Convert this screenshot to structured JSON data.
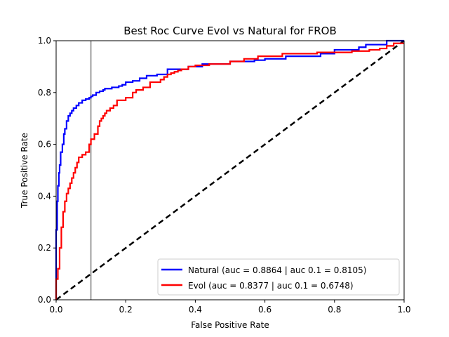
{
  "chart_data": {
    "type": "line",
    "title": "Best Roc Curve Evol vs Natural for FROB",
    "xlabel": "False Positive Rate",
    "ylabel": "True Positive Rate",
    "xlim": [
      0,
      1
    ],
    "ylim": [
      0,
      1
    ],
    "xticks": [
      "0.0",
      "0.2",
      "0.4",
      "0.6",
      "0.8",
      "1.0"
    ],
    "yticks": [
      "0.0",
      "0.2",
      "0.4",
      "0.6",
      "0.8",
      "1.0"
    ],
    "grid": false,
    "legend_position": "lower-right",
    "reference_line": {
      "type": "diagonal",
      "style": "dashed",
      "color": "#000000",
      "x": [
        0,
        1
      ],
      "y": [
        0,
        1
      ]
    },
    "vertical_marker": {
      "x": 0.1,
      "color": "#808080"
    },
    "series": [
      {
        "name": "Natural (auc = 0.8864 | auc 0.1 = 0.8105)",
        "color": "#0000ff",
        "x": [
          0.0,
          0.0,
          0.003,
          0.003,
          0.005,
          0.005,
          0.008,
          0.008,
          0.01,
          0.01,
          0.013,
          0.013,
          0.018,
          0.018,
          0.022,
          0.022,
          0.025,
          0.025,
          0.03,
          0.03,
          0.035,
          0.035,
          0.04,
          0.04,
          0.045,
          0.045,
          0.05,
          0.05,
          0.058,
          0.058,
          0.065,
          0.065,
          0.075,
          0.075,
          0.085,
          0.085,
          0.095,
          0.095,
          0.1,
          0.1,
          0.105,
          0.105,
          0.115,
          0.115,
          0.125,
          0.125,
          0.135,
          0.135,
          0.14,
          0.14,
          0.16,
          0.16,
          0.18,
          0.18,
          0.19,
          0.19,
          0.2,
          0.2,
          0.22,
          0.22,
          0.24,
          0.24,
          0.26,
          0.26,
          0.29,
          0.29,
          0.32,
          0.32,
          0.38,
          0.38,
          0.42,
          0.42,
          0.5,
          0.5,
          0.57,
          0.57,
          0.6,
          0.6,
          0.66,
          0.66,
          0.76,
          0.76,
          0.8,
          0.8,
          0.87,
          0.87,
          0.89,
          0.89,
          0.95,
          0.95,
          1.0
        ],
        "y": [
          0.0,
          0.27,
          0.27,
          0.38,
          0.38,
          0.44,
          0.44,
          0.49,
          0.49,
          0.52,
          0.52,
          0.57,
          0.57,
          0.6,
          0.6,
          0.64,
          0.64,
          0.66,
          0.66,
          0.69,
          0.69,
          0.71,
          0.71,
          0.72,
          0.72,
          0.73,
          0.73,
          0.74,
          0.74,
          0.75,
          0.75,
          0.76,
          0.76,
          0.77,
          0.77,
          0.775,
          0.775,
          0.78,
          0.78,
          0.785,
          0.785,
          0.79,
          0.79,
          0.8,
          0.8,
          0.805,
          0.805,
          0.81,
          0.81,
          0.815,
          0.815,
          0.82,
          0.82,
          0.825,
          0.825,
          0.83,
          0.83,
          0.84,
          0.84,
          0.845,
          0.845,
          0.855,
          0.855,
          0.865,
          0.865,
          0.87,
          0.87,
          0.89,
          0.89,
          0.9,
          0.9,
          0.91,
          0.91,
          0.92,
          0.92,
          0.925,
          0.925,
          0.93,
          0.93,
          0.94,
          0.94,
          0.95,
          0.95,
          0.965,
          0.965,
          0.975,
          0.975,
          0.985,
          0.985,
          1.0,
          1.0
        ]
      },
      {
        "name": "Evol (auc = 0.8377 | auc 0.1 = 0.6748)",
        "color": "#ff0000",
        "x": [
          0.0,
          0.0,
          0.005,
          0.005,
          0.01,
          0.01,
          0.015,
          0.015,
          0.02,
          0.02,
          0.025,
          0.025,
          0.03,
          0.03,
          0.035,
          0.035,
          0.04,
          0.04,
          0.045,
          0.045,
          0.05,
          0.05,
          0.055,
          0.055,
          0.06,
          0.06,
          0.065,
          0.065,
          0.075,
          0.075,
          0.085,
          0.085,
          0.095,
          0.095,
          0.1,
          0.1,
          0.11,
          0.11,
          0.12,
          0.12,
          0.125,
          0.125,
          0.13,
          0.13,
          0.135,
          0.135,
          0.14,
          0.14,
          0.145,
          0.145,
          0.155,
          0.155,
          0.165,
          0.165,
          0.175,
          0.175,
          0.2,
          0.2,
          0.22,
          0.22,
          0.23,
          0.23,
          0.25,
          0.25,
          0.27,
          0.27,
          0.3,
          0.3,
          0.31,
          0.31,
          0.32,
          0.32,
          0.33,
          0.33,
          0.34,
          0.34,
          0.35,
          0.35,
          0.36,
          0.36,
          0.38,
          0.38,
          0.4,
          0.4,
          0.44,
          0.44,
          0.5,
          0.5,
          0.54,
          0.54,
          0.58,
          0.58,
          0.65,
          0.65,
          0.75,
          0.75,
          0.85,
          0.85,
          0.9,
          0.9,
          0.93,
          0.93,
          0.95,
          0.95,
          0.97,
          0.97,
          1.0
        ],
        "y": [
          0.0,
          0.08,
          0.08,
          0.12,
          0.12,
          0.2,
          0.2,
          0.28,
          0.28,
          0.34,
          0.34,
          0.38,
          0.38,
          0.41,
          0.41,
          0.43,
          0.43,
          0.45,
          0.45,
          0.47,
          0.47,
          0.49,
          0.49,
          0.51,
          0.51,
          0.53,
          0.53,
          0.55,
          0.55,
          0.56,
          0.56,
          0.57,
          0.57,
          0.6,
          0.6,
          0.62,
          0.62,
          0.64,
          0.64,
          0.67,
          0.67,
          0.69,
          0.69,
          0.7,
          0.7,
          0.71,
          0.71,
          0.72,
          0.72,
          0.73,
          0.73,
          0.74,
          0.74,
          0.75,
          0.75,
          0.77,
          0.77,
          0.78,
          0.78,
          0.8,
          0.8,
          0.81,
          0.81,
          0.82,
          0.82,
          0.84,
          0.84,
          0.85,
          0.85,
          0.86,
          0.86,
          0.87,
          0.87,
          0.875,
          0.875,
          0.88,
          0.88,
          0.885,
          0.885,
          0.89,
          0.89,
          0.9,
          0.9,
          0.905,
          0.905,
          0.91,
          0.91,
          0.92,
          0.92,
          0.93,
          0.93,
          0.94,
          0.94,
          0.95,
          0.95,
          0.955,
          0.955,
          0.96,
          0.96,
          0.965,
          0.965,
          0.97,
          0.97,
          0.98,
          0.98,
          0.99,
          0.99
        ]
      }
    ]
  }
}
